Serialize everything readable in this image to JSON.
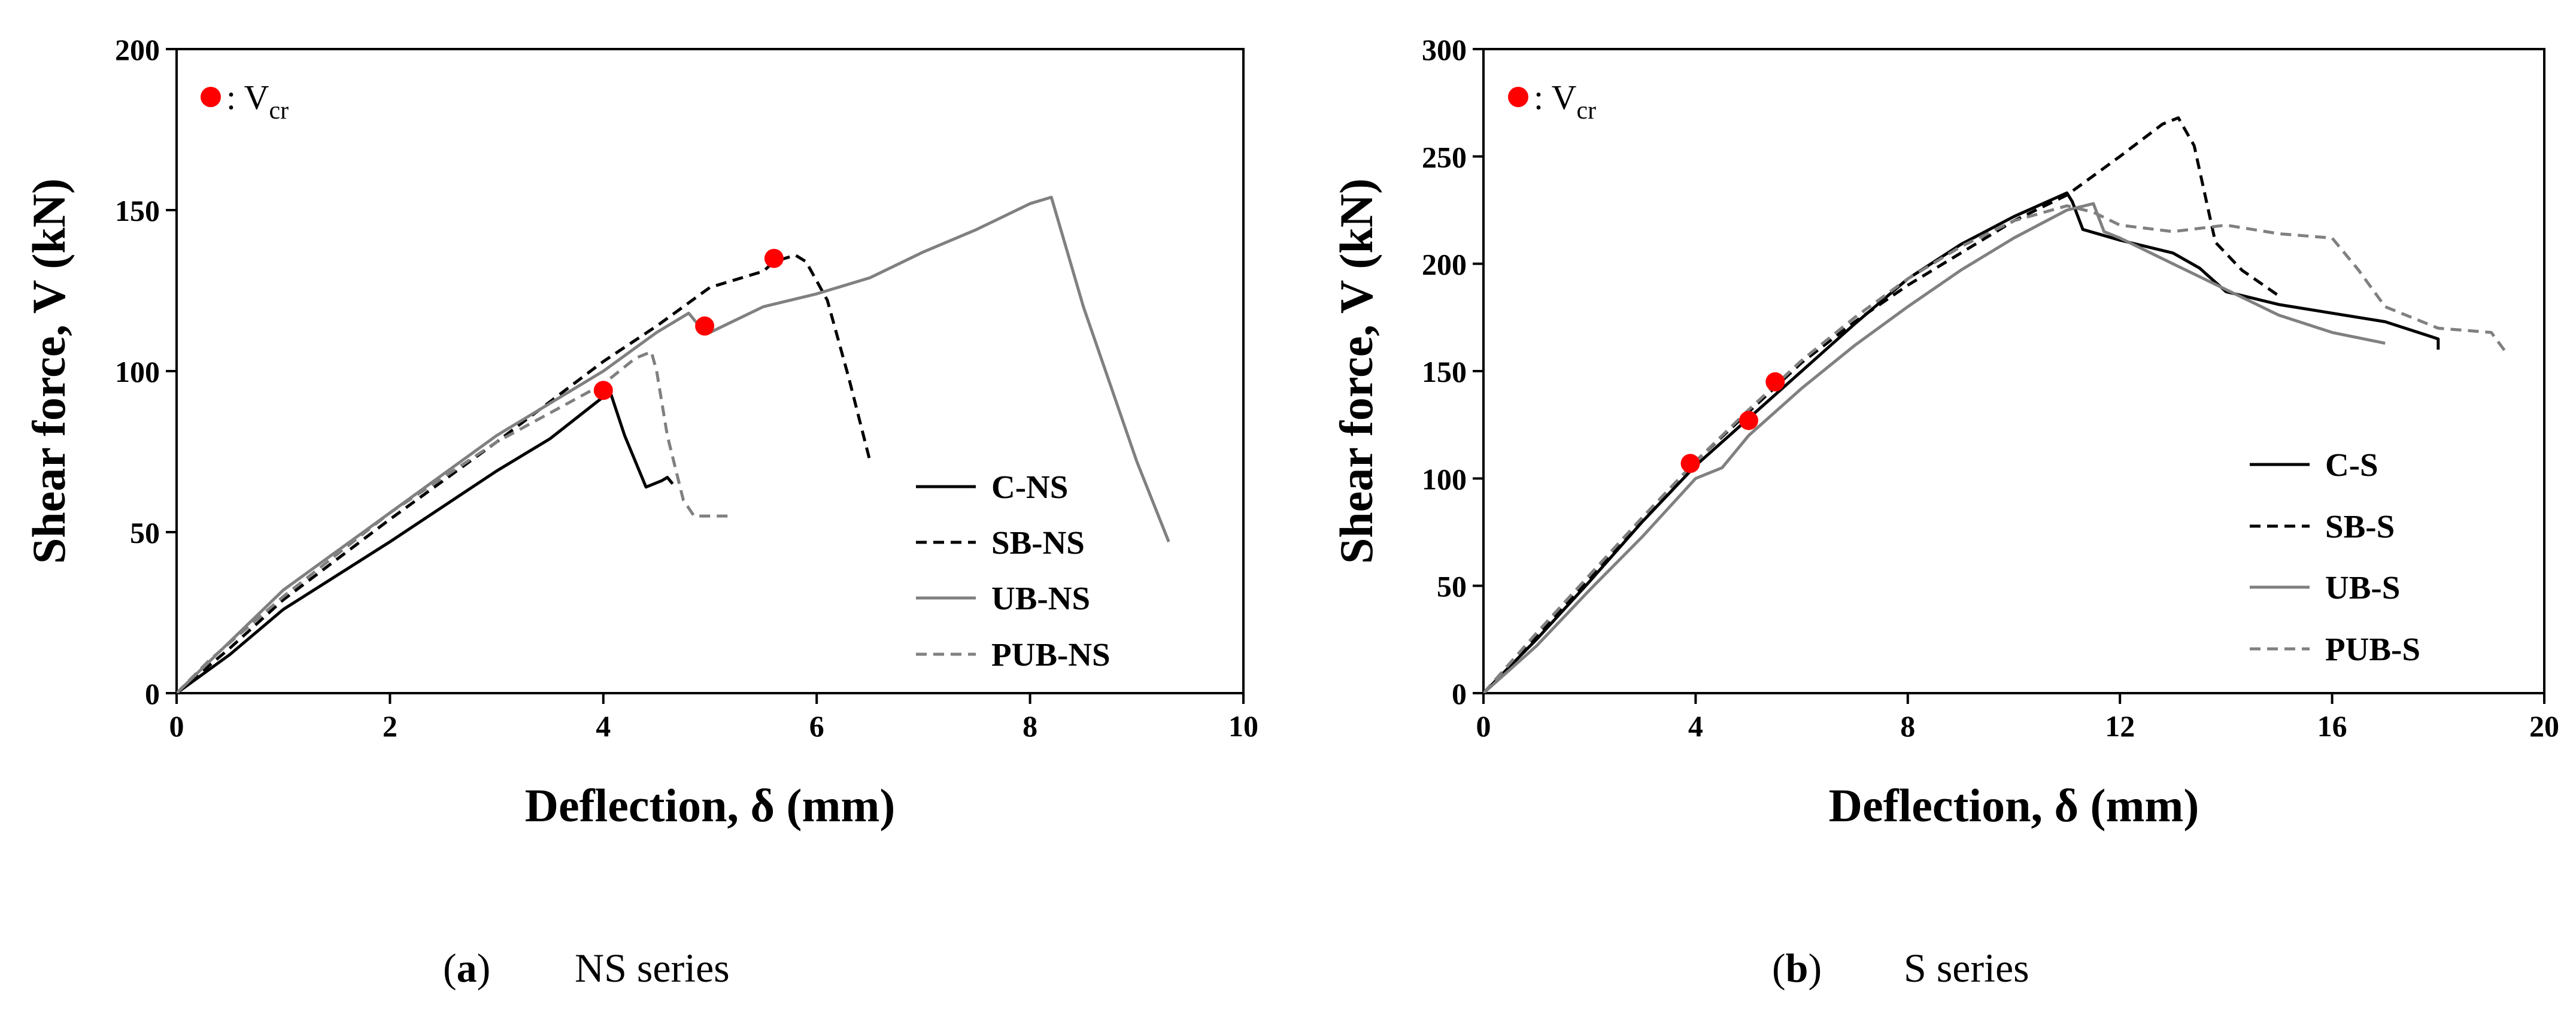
{
  "chart_data": [
    {
      "type": "line",
      "id": "a",
      "xlabel": "Deflection, δ (mm)",
      "ylabel": "Shear force, V (kN)",
      "xlim": [
        0,
        10
      ],
      "ylim": [
        0,
        200
      ],
      "xticks": [
        0,
        2,
        4,
        6,
        8,
        10
      ],
      "yticks": [
        0,
        50,
        100,
        150,
        200
      ],
      "vcr_marker": {
        "symbol": ": V",
        "sub": "cr"
      },
      "caption": {
        "label": "a",
        "text": "NS series"
      },
      "series": [
        {
          "name": "C-NS",
          "color": "#000000",
          "dash": "solid",
          "points": [
            [
              0,
              0
            ],
            [
              0.5,
              12
            ],
            [
              1,
              26
            ],
            [
              2,
              47
            ],
            [
              3,
              69
            ],
            [
              3.5,
              79
            ],
            [
              4,
              92
            ],
            [
              4.05,
              95
            ],
            [
              4.2,
              80
            ],
            [
              4.4,
              64
            ],
            [
              4.55,
              66
            ],
            [
              4.6,
              67
            ],
            [
              4.65,
              65
            ]
          ]
        },
        {
          "name": "SB-NS",
          "color": "#000000",
          "dash": "dashed",
          "points": [
            [
              0,
              0
            ],
            [
              0.5,
              14
            ],
            [
              1,
              29
            ],
            [
              2,
              54
            ],
            [
              3,
              78
            ],
            [
              4,
              103
            ],
            [
              4.5,
              114
            ],
            [
              5,
              126
            ],
            [
              5.5,
              131
            ],
            [
              5.6,
              134
            ],
            [
              5.8,
              136
            ],
            [
              5.9,
              134
            ],
            [
              6.1,
              122
            ],
            [
              6.3,
              98
            ],
            [
              6.4,
              85
            ],
            [
              6.5,
              72
            ]
          ]
        },
        {
          "name": "UB-NS",
          "color": "#808080",
          "dash": "solid",
          "points": [
            [
              0,
              0
            ],
            [
              0.5,
              16
            ],
            [
              1,
              32
            ],
            [
              2,
              56
            ],
            [
              3,
              80
            ],
            [
              4,
              100
            ],
            [
              4.5,
              112
            ],
            [
              4.8,
              118
            ],
            [
              4.9,
              114
            ],
            [
              5,
              112
            ],
            [
              5.5,
              120
            ],
            [
              6,
              124
            ],
            [
              6.5,
              129
            ],
            [
              7,
              137
            ],
            [
              7.5,
              144
            ],
            [
              8,
              152
            ],
            [
              8.2,
              154
            ],
            [
              8.5,
              120
            ],
            [
              9,
              72
            ],
            [
              9.3,
              47
            ]
          ]
        },
        {
          "name": "PUB-NS",
          "color": "#808080",
          "dash": "dashed",
          "points": [
            [
              0,
              0
            ],
            [
              0.3,
              10
            ],
            [
              1,
              30
            ],
            [
              2,
              56
            ],
            [
              3,
              78
            ],
            [
              4,
              96
            ],
            [
              4.3,
              104
            ],
            [
              4.45,
              106
            ],
            [
              4.5,
              100
            ],
            [
              4.6,
              80
            ],
            [
              4.75,
              60
            ],
            [
              4.85,
              55
            ],
            [
              5.2,
              55
            ]
          ]
        }
      ],
      "vcr_points": [
        [
          4.0,
          94
        ],
        [
          4.95,
          114
        ],
        [
          5.6,
          135
        ]
      ]
    },
    {
      "type": "line",
      "id": "b",
      "xlabel": "Deflection, δ (mm)",
      "ylabel": "Shear force, V (kN)",
      "xlim": [
        0,
        20
      ],
      "ylim": [
        0,
        300
      ],
      "xticks": [
        0,
        4,
        8,
        12,
        16,
        20
      ],
      "yticks": [
        0,
        50,
        100,
        150,
        200,
        250,
        300
      ],
      "vcr_marker": {
        "symbol": ": V",
        "sub": "cr"
      },
      "caption": {
        "label": "b",
        "text": "S series"
      },
      "series": [
        {
          "name": "C-S",
          "color": "#000000",
          "dash": "solid",
          "points": [
            [
              0,
              0
            ],
            [
              1,
              25
            ],
            [
              2,
              52
            ],
            [
              3,
              80
            ],
            [
              4,
              106
            ],
            [
              5,
              128
            ],
            [
              6,
              150
            ],
            [
              7,
              172
            ],
            [
              8,
              193
            ],
            [
              9,
              209
            ],
            [
              10,
              222
            ],
            [
              11,
              233
            ],
            [
              11.1,
              229
            ],
            [
              11.3,
              216
            ],
            [
              12,
              211
            ],
            [
              13,
              205
            ],
            [
              13.5,
              198
            ],
            [
              14,
              187
            ],
            [
              15,
              181
            ],
            [
              16,
              177
            ],
            [
              17,
              173
            ],
            [
              18,
              165
            ],
            [
              18,
              160
            ]
          ]
        },
        {
          "name": "SB-S",
          "color": "#000000",
          "dash": "dashed",
          "points": [
            [
              0,
              0
            ],
            [
              1,
              27
            ],
            [
              2,
              54
            ],
            [
              3,
              81
            ],
            [
              4,
              108
            ],
            [
              5,
              131
            ],
            [
              6,
              154
            ],
            [
              7,
              173
            ],
            [
              8,
              190
            ],
            [
              9,
              205
            ],
            [
              10,
              220
            ],
            [
              11,
              232
            ],
            [
              12,
              250
            ],
            [
              12.8,
              265
            ],
            [
              13.1,
              268
            ],
            [
              13.4,
              255
            ],
            [
              13.8,
              210
            ],
            [
              14.3,
              197
            ],
            [
              15,
              185
            ]
          ]
        },
        {
          "name": "UB-S",
          "color": "#808080",
          "dash": "solid",
          "points": [
            [
              0,
              0
            ],
            [
              1,
              22
            ],
            [
              2,
              48
            ],
            [
              3,
              73
            ],
            [
              4,
              100
            ],
            [
              4.5,
              105
            ],
            [
              5,
              120
            ],
            [
              6,
              142
            ],
            [
              7,
              162
            ],
            [
              8,
              180
            ],
            [
              9,
              197
            ],
            [
              10,
              212
            ],
            [
              11,
              225
            ],
            [
              11.5,
              228
            ],
            [
              11.7,
              215
            ],
            [
              12,
              212
            ],
            [
              13,
              200
            ],
            [
              14,
              188
            ],
            [
              15,
              176
            ],
            [
              16,
              168
            ],
            [
              17,
              163
            ]
          ]
        },
        {
          "name": "PUB-S",
          "color": "#808080",
          "dash": "dashed",
          "points": [
            [
              0,
              0
            ],
            [
              1,
              28
            ],
            [
              2,
              55
            ],
            [
              3,
              82
            ],
            [
              4,
              108
            ],
            [
              5,
              132
            ],
            [
              6,
              155
            ],
            [
              7,
              175
            ],
            [
              8,
              193
            ],
            [
              9,
              208
            ],
            [
              10,
              220
            ],
            [
              11,
              227
            ],
            [
              11.5,
              224
            ],
            [
              12,
              218
            ],
            [
              13,
              215
            ],
            [
              14,
              218
            ],
            [
              15,
              214
            ],
            [
              16,
              212
            ],
            [
              16.5,
              197
            ],
            [
              17,
              180
            ],
            [
              18,
              170
            ],
            [
              19,
              168
            ],
            [
              19.3,
              158
            ]
          ]
        }
      ],
      "vcr_points": [
        [
          3.9,
          107
        ],
        [
          5.0,
          127
        ],
        [
          5.5,
          145
        ]
      ]
    }
  ]
}
